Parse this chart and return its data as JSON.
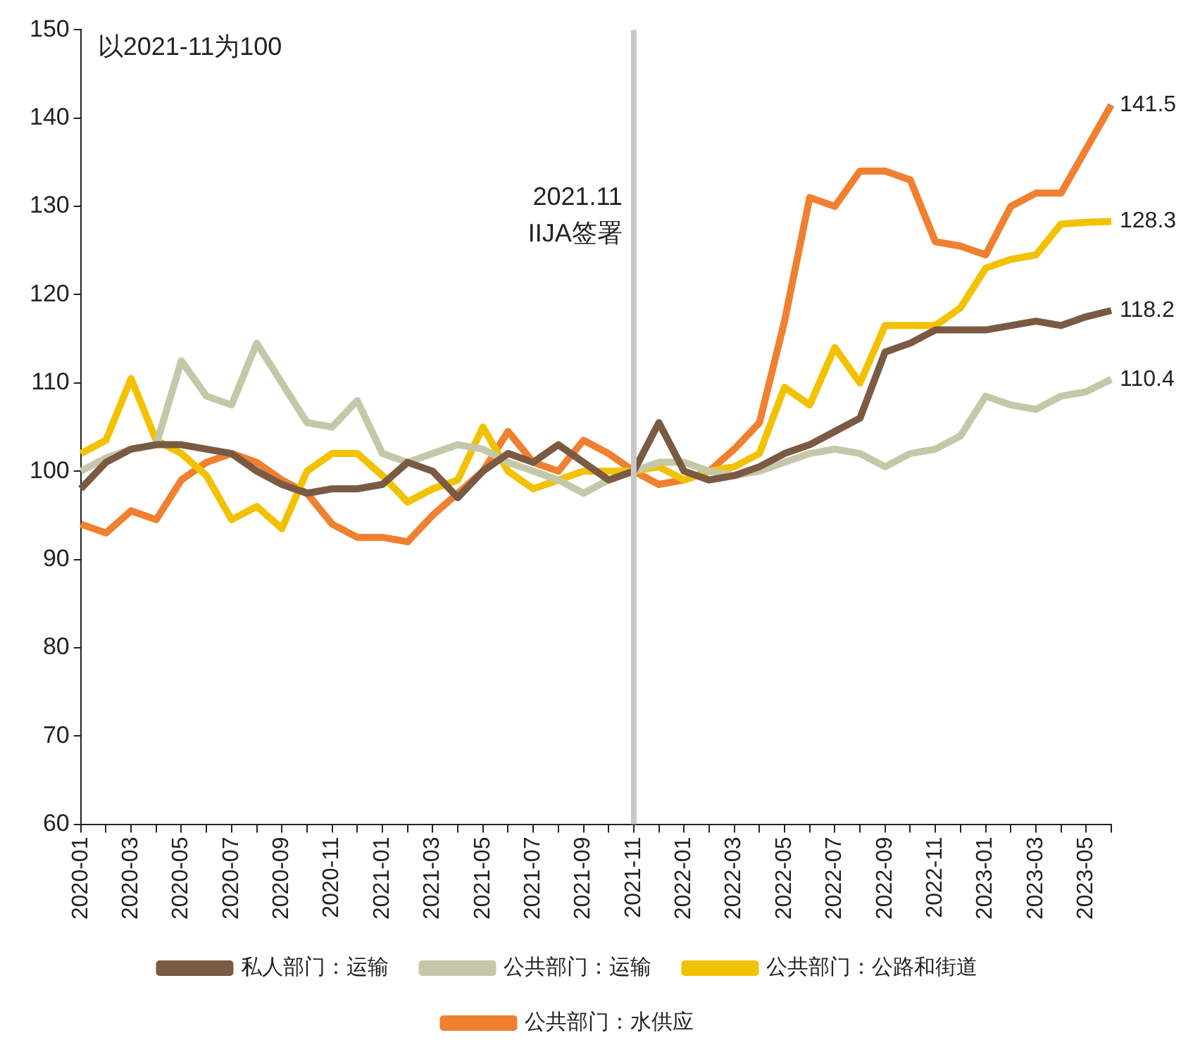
{
  "chart_data": {
    "type": "line",
    "categories": [
      "2020-01",
      null,
      "2020-03",
      null,
      "2020-05",
      null,
      "2020-07",
      null,
      "2020-09",
      null,
      "2020-11",
      null,
      "2021-01",
      null,
      "2021-03",
      null,
      "2021-05",
      null,
      "2021-07",
      null,
      "2021-09",
      null,
      "2021-11",
      null,
      "2022-01",
      null,
      "2022-03",
      null,
      "2022-05",
      null,
      "2022-07",
      null,
      "2022-09",
      null,
      "2022-11",
      null,
      "2023-01",
      null,
      "2023-03",
      null,
      "2023-05",
      null
    ],
    "series": [
      {
        "name": "私人部门：运输",
        "color": "#7b5a44",
        "values": [
          98,
          101,
          102.5,
          103,
          103,
          102.5,
          102,
          100,
          98.5,
          97.5,
          98,
          98,
          98.5,
          101,
          100,
          97,
          100,
          102,
          101,
          103,
          101,
          99,
          100,
          105.5,
          100,
          99,
          99.5,
          100.5,
          102,
          103,
          104.5,
          106,
          113.5,
          114.5,
          116,
          116,
          116,
          116.5,
          117,
          116.5,
          117.5,
          118.2
        ],
        "value_labels": [
          null,
          null,
          null,
          null,
          null,
          null,
          null,
          null,
          null,
          null,
          null,
          null,
          null,
          null,
          null,
          null,
          null,
          null,
          null,
          null,
          null,
          null,
          null,
          null,
          null,
          null,
          null,
          null,
          null,
          null,
          null,
          null,
          null,
          null,
          null,
          null,
          null,
          null,
          null,
          null,
          null,
          "118.2"
        ]
      },
      {
        "name": "公共部门：运输",
        "color": "#c5c8a8",
        "values": [
          100,
          101.5,
          102.5,
          103,
          112.5,
          108.5,
          107.5,
          114.5,
          110,
          105.5,
          105,
          108,
          102,
          101,
          102,
          103,
          102.5,
          101,
          100,
          99,
          97.5,
          99,
          100,
          101,
          101,
          100,
          99.5,
          100,
          101,
          102,
          102.5,
          102,
          100.5,
          102,
          102.5,
          104,
          108.5,
          107.5,
          107,
          108.5,
          109,
          110.4
        ],
        "value_labels": [
          null,
          null,
          null,
          null,
          null,
          null,
          null,
          null,
          null,
          null,
          null,
          null,
          null,
          null,
          null,
          null,
          null,
          null,
          null,
          null,
          null,
          null,
          null,
          null,
          null,
          null,
          null,
          null,
          null,
          null,
          null,
          null,
          null,
          null,
          null,
          null,
          null,
          null,
          null,
          null,
          null,
          "110.4"
        ]
      },
      {
        "name": "公共部门：公路和街道",
        "color": "#f2c200",
        "values": [
          102,
          103.5,
          110.5,
          103.5,
          102,
          99.5,
          94.5,
          96,
          93.5,
          100,
          102,
          102,
          99.5,
          96.5,
          98,
          99,
          105,
          100,
          98,
          99,
          100,
          100,
          100,
          100.5,
          99,
          100,
          100.5,
          102,
          109.5,
          107.5,
          114,
          110,
          116.5,
          116.5,
          116.5,
          118.5,
          123,
          124,
          124.5,
          128,
          128.2,
          128.3
        ],
        "value_labels": [
          null,
          null,
          null,
          null,
          null,
          null,
          null,
          null,
          null,
          null,
          null,
          null,
          null,
          null,
          null,
          null,
          null,
          null,
          null,
          null,
          null,
          null,
          null,
          null,
          null,
          null,
          null,
          null,
          null,
          null,
          null,
          null,
          null,
          null,
          null,
          null,
          null,
          null,
          null,
          null,
          null,
          "128.3"
        ]
      },
      {
        "name": "公共部门：水供应",
        "color": "#f08030",
        "values": [
          94,
          93,
          95.5,
          94.5,
          99,
          101,
          102,
          101,
          99,
          97.5,
          94,
          92.5,
          92.5,
          92,
          95,
          97.5,
          100,
          104.5,
          101,
          100,
          103.5,
          102,
          100,
          98.5,
          99,
          100,
          102.5,
          105.5,
          117,
          131,
          130,
          134,
          134,
          133,
          126,
          125.5,
          124.5,
          130,
          131.5,
          131.5,
          136.5,
          141.5
        ],
        "value_labels": [
          null,
          null,
          null,
          null,
          null,
          null,
          null,
          null,
          null,
          null,
          null,
          null,
          null,
          null,
          null,
          null,
          null,
          null,
          null,
          null,
          null,
          null,
          null,
          null,
          null,
          null,
          null,
          null,
          null,
          null,
          null,
          null,
          null,
          null,
          null,
          null,
          null,
          null,
          null,
          null,
          null,
          "141.5"
        ]
      }
    ],
    "ylim": [
      60,
      150
    ],
    "yticks": [
      60,
      70,
      80,
      90,
      100,
      110,
      120,
      130,
      140,
      150
    ],
    "grid": false,
    "legend": "bottom",
    "marker": "none",
    "line_style": "solid",
    "ref_lines": [
      {
        "axis": "x",
        "value": "2021-11",
        "label": "2021.11\nIIJA签署",
        "color": "#c8c8c8"
      }
    ],
    "annotations": [
      "以2021-11为100"
    ]
  }
}
